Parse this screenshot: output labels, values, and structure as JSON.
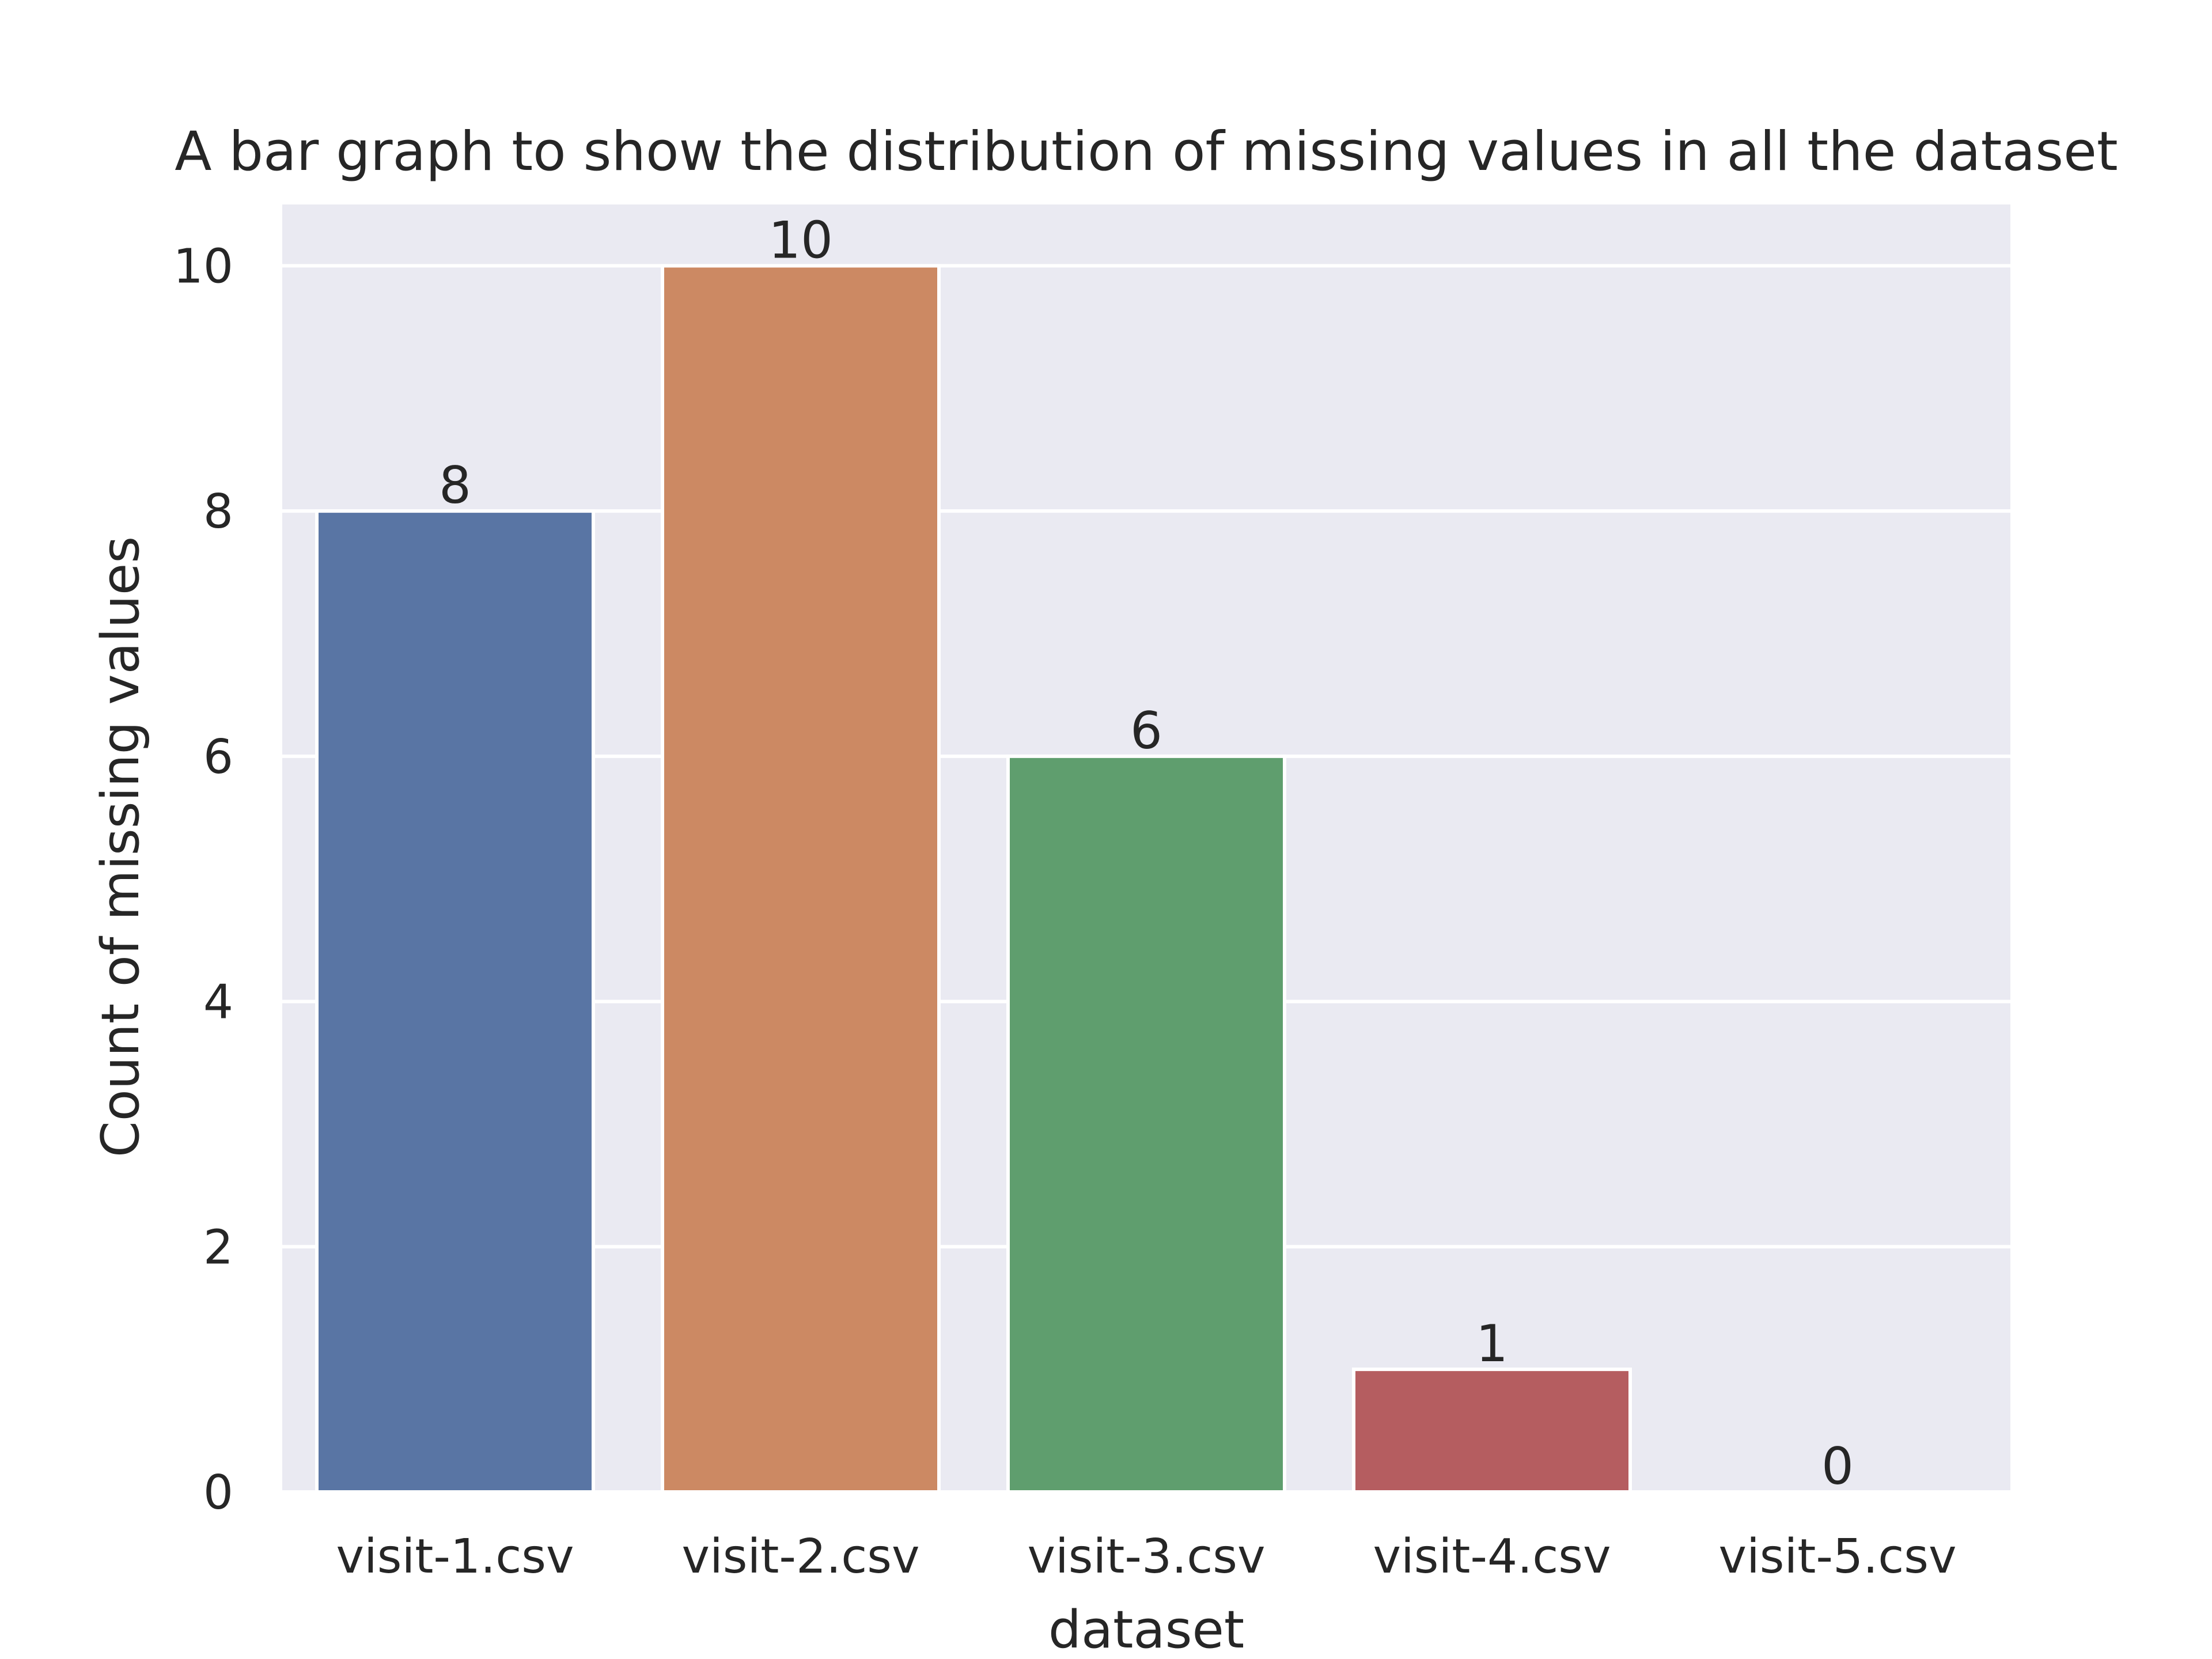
{
  "chart_data": {
    "type": "bar",
    "title": "A bar graph to show the distribution of missing values in all the dataset",
    "xlabel": "dataset",
    "ylabel": "Count of missing values",
    "categories": [
      "visit-1.csv",
      "visit-2.csv",
      "visit-3.csv",
      "visit-4.csv",
      "visit-5.csv"
    ],
    "values": [
      8,
      10,
      6,
      1,
      0
    ],
    "data_labels": [
      "8",
      "10",
      "6",
      "1",
      "0"
    ],
    "yticks": [
      0,
      2,
      4,
      6,
      8,
      10
    ],
    "ylim": [
      0,
      10.5
    ],
    "grid": true,
    "colors": {
      "plot_background": "#eaeaf2",
      "grid": "#ffffff",
      "bars": [
        "#5975a4",
        "#cc8963",
        "#5f9e6e",
        "#b55d60",
        "#857aab"
      ]
    }
  }
}
